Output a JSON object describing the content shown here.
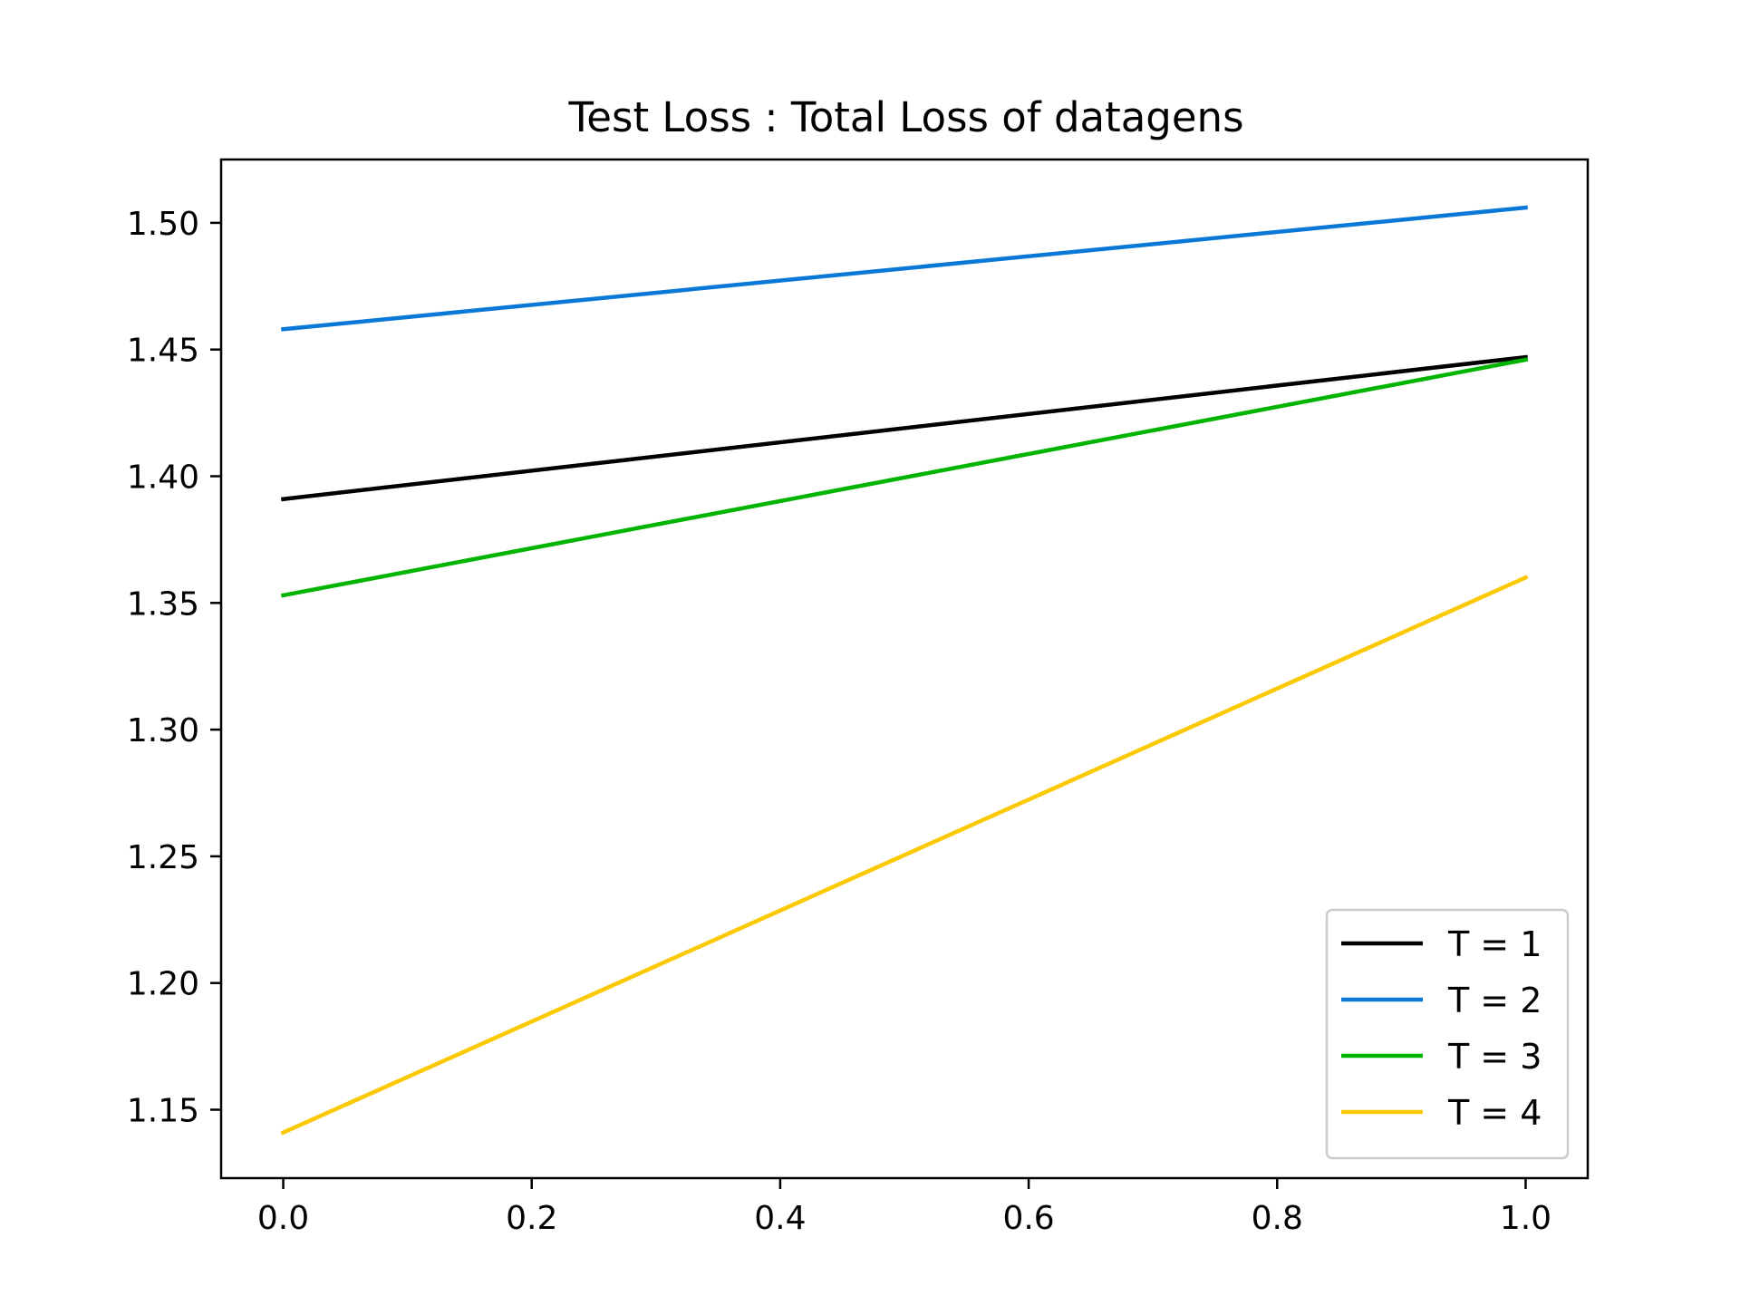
{
  "chart_data": {
    "type": "line",
    "title": "Test Loss : Total Loss of datagens",
    "xlabel": "",
    "ylabel": "",
    "x": [
      0.0,
      1.0
    ],
    "xlim": [
      -0.05,
      1.05
    ],
    "ylim": [
      1.123,
      1.525
    ],
    "xticks": [
      0.0,
      0.2,
      0.4,
      0.6,
      0.8,
      1.0
    ],
    "xtick_labels": [
      "0.0",
      "0.2",
      "0.4",
      "0.6",
      "0.8",
      "1.0"
    ],
    "yticks": [
      1.15,
      1.2,
      1.25,
      1.3,
      1.35,
      1.4,
      1.45,
      1.5
    ],
    "ytick_labels": [
      "1.15",
      "1.20",
      "1.25",
      "1.30",
      "1.35",
      "1.40",
      "1.45",
      "1.50"
    ],
    "grid": false,
    "legend_position": "lower-right",
    "series": [
      {
        "name": "T = 1",
        "color": "#000000",
        "values": [
          1.391,
          1.447
        ]
      },
      {
        "name": "T = 2",
        "color": "#0a78d7",
        "values": [
          1.458,
          1.506
        ]
      },
      {
        "name": "T = 3",
        "color": "#00b400",
        "values": [
          1.353,
          1.446
        ]
      },
      {
        "name": "T = 4",
        "color": "#fcc800",
        "values": [
          1.141,
          1.36
        ]
      }
    ]
  }
}
